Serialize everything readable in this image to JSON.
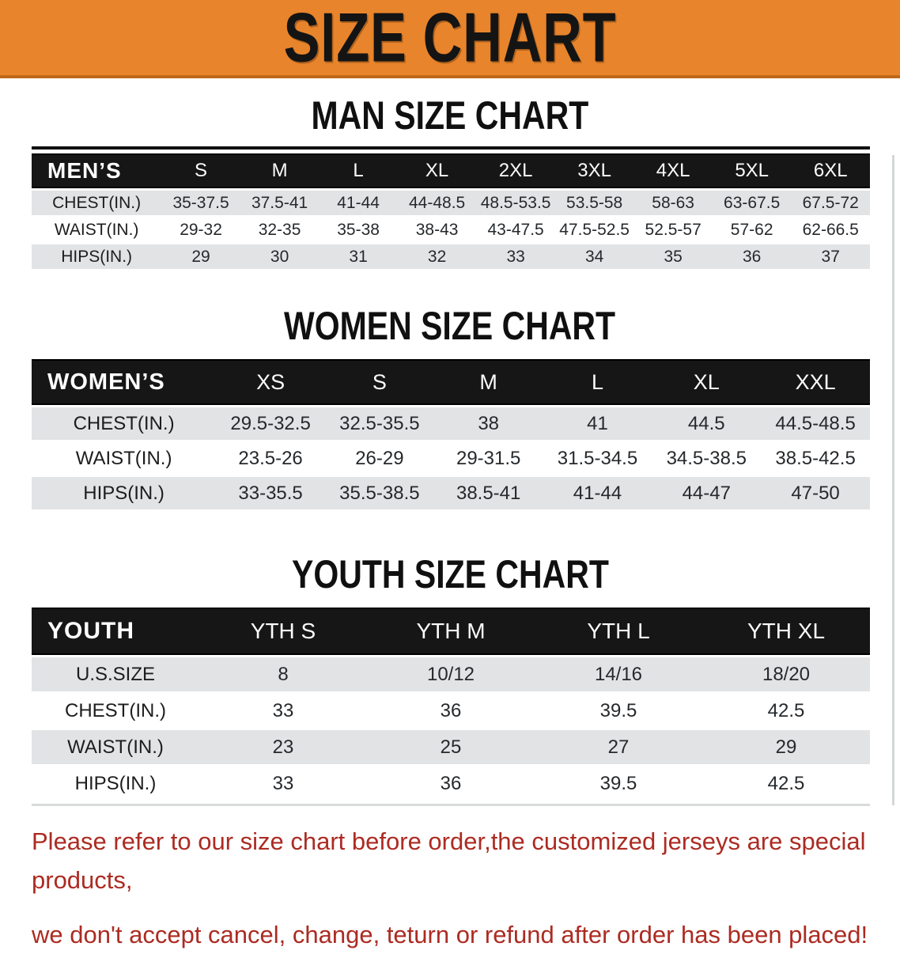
{
  "banner": {
    "title": "SIZE CHART",
    "bg_color": "#E8842B",
    "edge_color": "#C06818",
    "text_color": "#141414"
  },
  "sections": [
    {
      "heading": "MAN SIZE CHART",
      "corner_label": "MEN’S",
      "columns": [
        "S",
        "M",
        "L",
        "XL",
        "2XL",
        "3XL",
        "4XL",
        "5XL",
        "6XL"
      ],
      "rows": [
        {
          "label": "CHEST(IN.)",
          "values": [
            "35-37.5",
            "37.5-41",
            "41-44",
            "44-48.5",
            "48.5-53.5",
            "53.5-58",
            "58-63",
            "63-67.5",
            "67.5-72"
          ]
        },
        {
          "label": "WAIST(IN.)",
          "values": [
            "29-32",
            "32-35",
            "35-38",
            "38-43",
            "43-47.5",
            "47.5-52.5",
            "52.5-57",
            "57-62",
            "62-66.5"
          ]
        },
        {
          "label": "HIPS(IN.)",
          "values": [
            "29",
            "30",
            "31",
            "32",
            "33",
            "34",
            "35",
            "36",
            "37"
          ]
        }
      ]
    },
    {
      "heading": "WOMEN SIZE CHART",
      "corner_label": "WOMEN’S",
      "columns": [
        "XS",
        "S",
        "M",
        "L",
        "XL",
        "XXL"
      ],
      "rows": [
        {
          "label": "CHEST(IN.)",
          "values": [
            "29.5-32.5",
            "32.5-35.5",
            "38",
            "41",
            "44.5",
            "44.5-48.5"
          ]
        },
        {
          "label": "WAIST(IN.)",
          "values": [
            "23.5-26",
            "26-29",
            "29-31.5",
            "31.5-34.5",
            "34.5-38.5",
            "38.5-42.5"
          ]
        },
        {
          "label": "HIPS(IN.)",
          "values": [
            "33-35.5",
            "35.5-38.5",
            "38.5-41",
            "41-44",
            "44-47",
            "47-50"
          ]
        }
      ]
    },
    {
      "heading": "YOUTH SIZE CHART",
      "corner_label": "YOUTH",
      "columns": [
        "YTH S",
        "YTH M",
        "YTH L",
        "YTH XL"
      ],
      "rows": [
        {
          "label": "U.S.SIZE",
          "values": [
            "8",
            "10/12",
            "14/16",
            "18/20"
          ]
        },
        {
          "label": "CHEST(IN.)",
          "values": [
            "33",
            "36",
            "39.5",
            "42.5"
          ]
        },
        {
          "label": "WAIST(IN.)",
          "values": [
            "23",
            "25",
            "27",
            "29"
          ]
        },
        {
          "label": "HIPS(IN.)",
          "values": [
            "33",
            "36",
            "39.5",
            "42.5"
          ]
        }
      ]
    }
  ],
  "footer": {
    "line1": "Please refer to our size chart before order,the customized jerseys are special products,",
    "line2": "we don't accept cancel, change, teturn or refund after order has been placed!",
    "text_color": "#AC2B22"
  },
  "colors": {
    "header_band": "#161616",
    "row_stripe": "#E2E3E5",
    "heading_text": "#101010"
  }
}
